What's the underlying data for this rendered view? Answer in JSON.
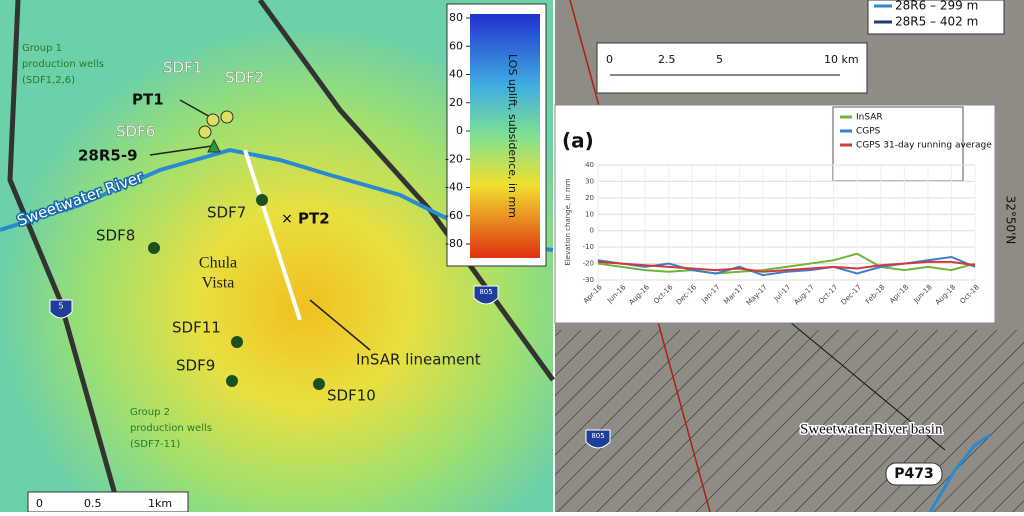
{
  "map": {
    "group1": [
      "Group 1",
      "production wells",
      "(SDF1,2,6)"
    ],
    "group2": [
      "Group 2",
      "production wells",
      "(SDF7-11)"
    ],
    "wells": {
      "sdf1": "SDF1",
      "sdf2": "SDF2",
      "sdf6": "SDF6",
      "sdf7": "SDF7",
      "sdf8": "SDF8",
      "sdf9": "SDF9",
      "sdf10": "SDF10",
      "sdf11": "SDF11"
    },
    "pt1": "PT1",
    "pt2": "PT2",
    "gps": "28R5-9",
    "river": "Sweetwater River",
    "city": [
      "Chula",
      "Vista"
    ],
    "lineament": "InSAR lineament",
    "shields": {
      "i5": "5",
      "i805a": "805",
      "i805b": "805"
    },
    "colorbar": {
      "label": "LOS uplift, subsidence, in mm",
      "ticks": [
        80,
        60,
        40,
        20,
        0,
        -20,
        -40,
        -60,
        -80
      ]
    },
    "scale_left": [
      "0",
      "0.5",
      "1km"
    ],
    "scale_right": [
      "0",
      "2.5",
      "5",
      "10 km"
    ],
    "legend": [
      "28R6 – 299 m",
      "28R5 – 402 m"
    ],
    "latitude": "32°50'N",
    "basin": "Sweetwater River basin",
    "station": "P473"
  },
  "chart_data": {
    "type": "line",
    "panel": "(a)",
    "y_label": "Elevation change, in mm",
    "categories": [
      "Apr-16",
      "Jun-16",
      "Aug-16",
      "Oct-16",
      "Dec-16",
      "Jan-17",
      "Mar-17",
      "May-17",
      "Jul-17",
      "Aug-17",
      "Oct-17",
      "Dec-17",
      "Feb-18",
      "Apr-18",
      "Jun-18",
      "Aug-18",
      "Oct-18"
    ],
    "series": [
      {
        "name": "InSAR",
        "color": "#6fb53a",
        "values": [
          -20,
          -22,
          -24,
          -25,
          -24,
          -26,
          -25,
          -24,
          -22,
          -20,
          -18,
          -14,
          -22,
          -24,
          -22,
          -24,
          -20
        ]
      },
      {
        "name": "CGPS",
        "color": "#3a7fd0",
        "values": [
          -18,
          -20,
          -22,
          -20,
          -24,
          -26,
          -22,
          -27,
          -25,
          -24,
          -22,
          -26,
          -22,
          -20,
          -18,
          -16,
          -22
        ]
      },
      {
        "name": "CGPS 31-day running average",
        "color": "#d03a3a",
        "values": [
          -19,
          -20,
          -21,
          -22,
          -23,
          -24,
          -23,
          -25,
          -24,
          -23,
          -22,
          -23,
          -21,
          -20,
          -19,
          -19,
          -21
        ]
      }
    ],
    "ylim": [
      -30,
      40
    ],
    "yticks": [
      40,
      30,
      20,
      10,
      0,
      -10,
      -20,
      -30
    ],
    "grid": true
  }
}
